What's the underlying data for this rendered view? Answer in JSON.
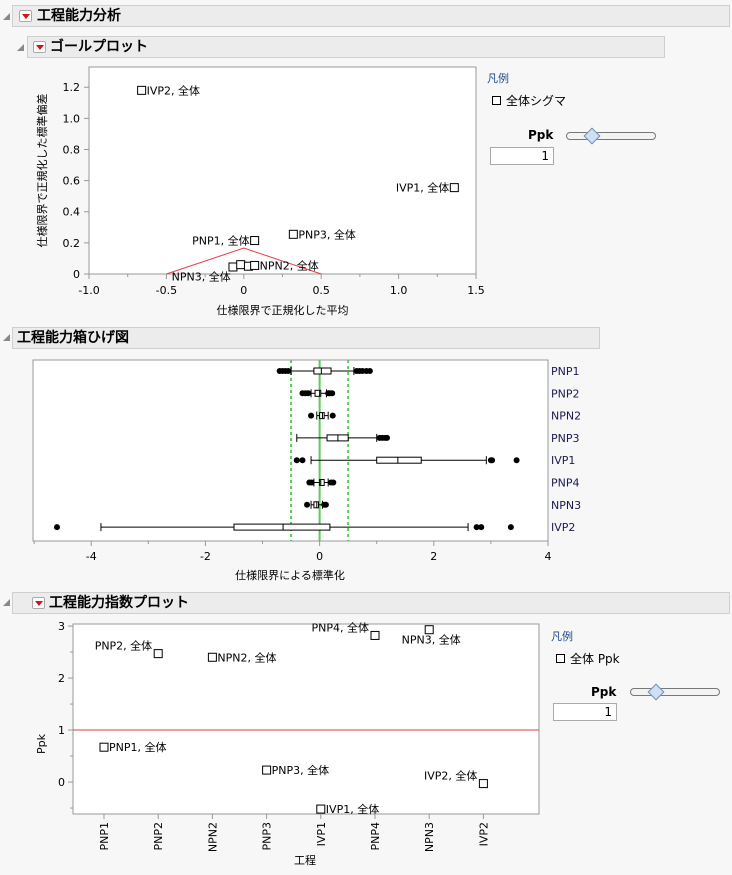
{
  "report": {
    "title": "工程能力分析"
  },
  "goal_plot": {
    "title": "ゴールプロット",
    "legend_title": "凡例",
    "legend_item": "全体シグマ",
    "slider_label": "Ppk",
    "slider_value": "1"
  },
  "box_plot": {
    "title": "工程能力箱ひげ図"
  },
  "index_plot": {
    "title": "工程能力指数プロット",
    "legend_title": "凡例",
    "legend_item": "全体 Ppk",
    "slider_label": "Ppk",
    "slider_value": "1"
  },
  "chart_data": [
    {
      "type": "scatter",
      "xlabel": "仕様限界で正規化した平均",
      "ylabel": "仕様限界で正規化した標準偏差",
      "xlim": [
        -1.0,
        1.5
      ],
      "ylim": [
        0,
        1.33
      ],
      "xticks": [
        "-1.0",
        "-0.5",
        "0",
        "0.5",
        "1.0",
        "1.5"
      ],
      "yticks": [
        "0",
        "0.2",
        "0.4",
        "0.6",
        "0.8",
        "1.0",
        "1.2"
      ],
      "reference_line": {
        "Ppk": 1,
        "points": [
          [
            -0.5,
            0
          ],
          [
            0,
            0.1667
          ],
          [
            0.5,
            0
          ]
        ],
        "color": "#e0404a"
      },
      "points": [
        {
          "label": "IVP2, 全体",
          "x": -0.66,
          "y": 1.18,
          "label_side": "right"
        },
        {
          "label": "IVP1, 全体",
          "x": 1.36,
          "y": 0.555,
          "label_side": "left"
        },
        {
          "label": "PNP1, 全体",
          "x": 0.07,
          "y": 0.215,
          "label_side": "left"
        },
        {
          "label": "PNP3, 全体",
          "x": 0.32,
          "y": 0.255,
          "label_side": "right"
        },
        {
          "label": "",
          "x": -0.07,
          "y": 0.045
        },
        {
          "label": "NPN3, 全体",
          "x": -0.02,
          "y": 0.06,
          "label_side": "below-left"
        },
        {
          "label": "",
          "x": 0.03,
          "y": 0.05
        },
        {
          "label": "NPN2, 全体",
          "x": 0.07,
          "y": 0.055,
          "label_side": "right"
        }
      ]
    },
    {
      "type": "box",
      "xlabel": "仕様限界による標準化",
      "xlim": [
        -5.02,
        4
      ],
      "xticks": [
        "-4",
        "-2",
        "0",
        "2",
        "4"
      ],
      "reference_lines": {
        "lsl": -0.5,
        "target": 0,
        "usl": 0.5,
        "color": "#5cc95c"
      },
      "categories": [
        "PNP1",
        "PNP2",
        "NPN2",
        "PNP3",
        "IVP1",
        "PNP4",
        "NPN3",
        "IVP2"
      ],
      "boxes": [
        {
          "whisker": [
            -0.5,
            0.6
          ],
          "q1": -0.1,
          "median": 0.03,
          "q3": 0.2,
          "outliers": [
            -0.7,
            -0.65,
            -0.6,
            -0.55,
            0.65,
            0.7,
            0.75,
            0.82,
            0.88
          ]
        },
        {
          "whisker": [
            -0.15,
            0.12
          ],
          "q1": -0.08,
          "median": 0.0,
          "q3": 0.02,
          "outliers": [
            -0.3,
            -0.25,
            -0.2,
            0.15,
            0.18,
            0.22
          ]
        },
        {
          "whisker": [
            -0.05,
            0.15
          ],
          "q1": 0.0,
          "median": 0.05,
          "q3": 0.08,
          "outliers": [
            -0.15,
            0.23
          ]
        },
        {
          "whisker": [
            -0.4,
            1.0
          ],
          "q1": 0.13,
          "median": 0.32,
          "q3": 0.5,
          "outliers": [
            1.05,
            1.1,
            1.15,
            1.18
          ]
        },
        {
          "whisker": [
            -0.15,
            2.92
          ],
          "q1": 1.0,
          "median": 1.37,
          "q3": 1.78,
          "outliers": [
            -0.4,
            -0.3,
            3.0,
            3.02,
            3.45
          ]
        },
        {
          "whisker": [
            -0.1,
            0.15
          ],
          "q1": 0.0,
          "median": 0.02,
          "q3": 0.08,
          "outliers": [
            -0.18,
            -0.14,
            0.2,
            0.24
          ]
        },
        {
          "whisker": [
            -0.15,
            0.05
          ],
          "q1": -0.1,
          "median": -0.05,
          "q3": -0.02,
          "outliers": [
            -0.22,
            0.08,
            0.11
          ]
        },
        {
          "whisker": [
            -3.83,
            2.6
          ],
          "q1": -1.5,
          "median": -0.64,
          "q3": 0.18,
          "outliers": [
            -4.6,
            2.75,
            2.83,
            3.35
          ]
        }
      ]
    },
    {
      "type": "scatter",
      "xlabel": "工程",
      "ylabel": "Ppk",
      "ylim": [
        -0.615,
        3.04
      ],
      "yticks": [
        "0",
        "1",
        "2",
        "3"
      ],
      "categories": [
        "PNP1",
        "PNP2",
        "NPN2",
        "PNP3",
        "IVP1",
        "PNP4",
        "NPN3",
        "IVP2"
      ],
      "reference_line": {
        "y": 1,
        "color": "#e0404a"
      },
      "points": [
        {
          "label": "PNP1, 全体",
          "y": 0.67,
          "label_side": "right"
        },
        {
          "label": "PNP2, 全体",
          "y": 2.47,
          "label_side": "left"
        },
        {
          "label": "NPN2, 全体",
          "y": 2.4,
          "label_side": "right"
        },
        {
          "label": "PNP3, 全体",
          "y": 0.23,
          "label_side": "right"
        },
        {
          "label": "IVP1, 全体",
          "y": -0.52,
          "label_side": "right"
        },
        {
          "label": "PNP4, 全体",
          "y": 2.82,
          "label_side": "left"
        },
        {
          "label": "NPN3, 全体",
          "y": 2.93,
          "label_side": "below"
        },
        {
          "label": "IVP2, 全体",
          "y": -0.03,
          "label_side": "left"
        }
      ]
    }
  ]
}
